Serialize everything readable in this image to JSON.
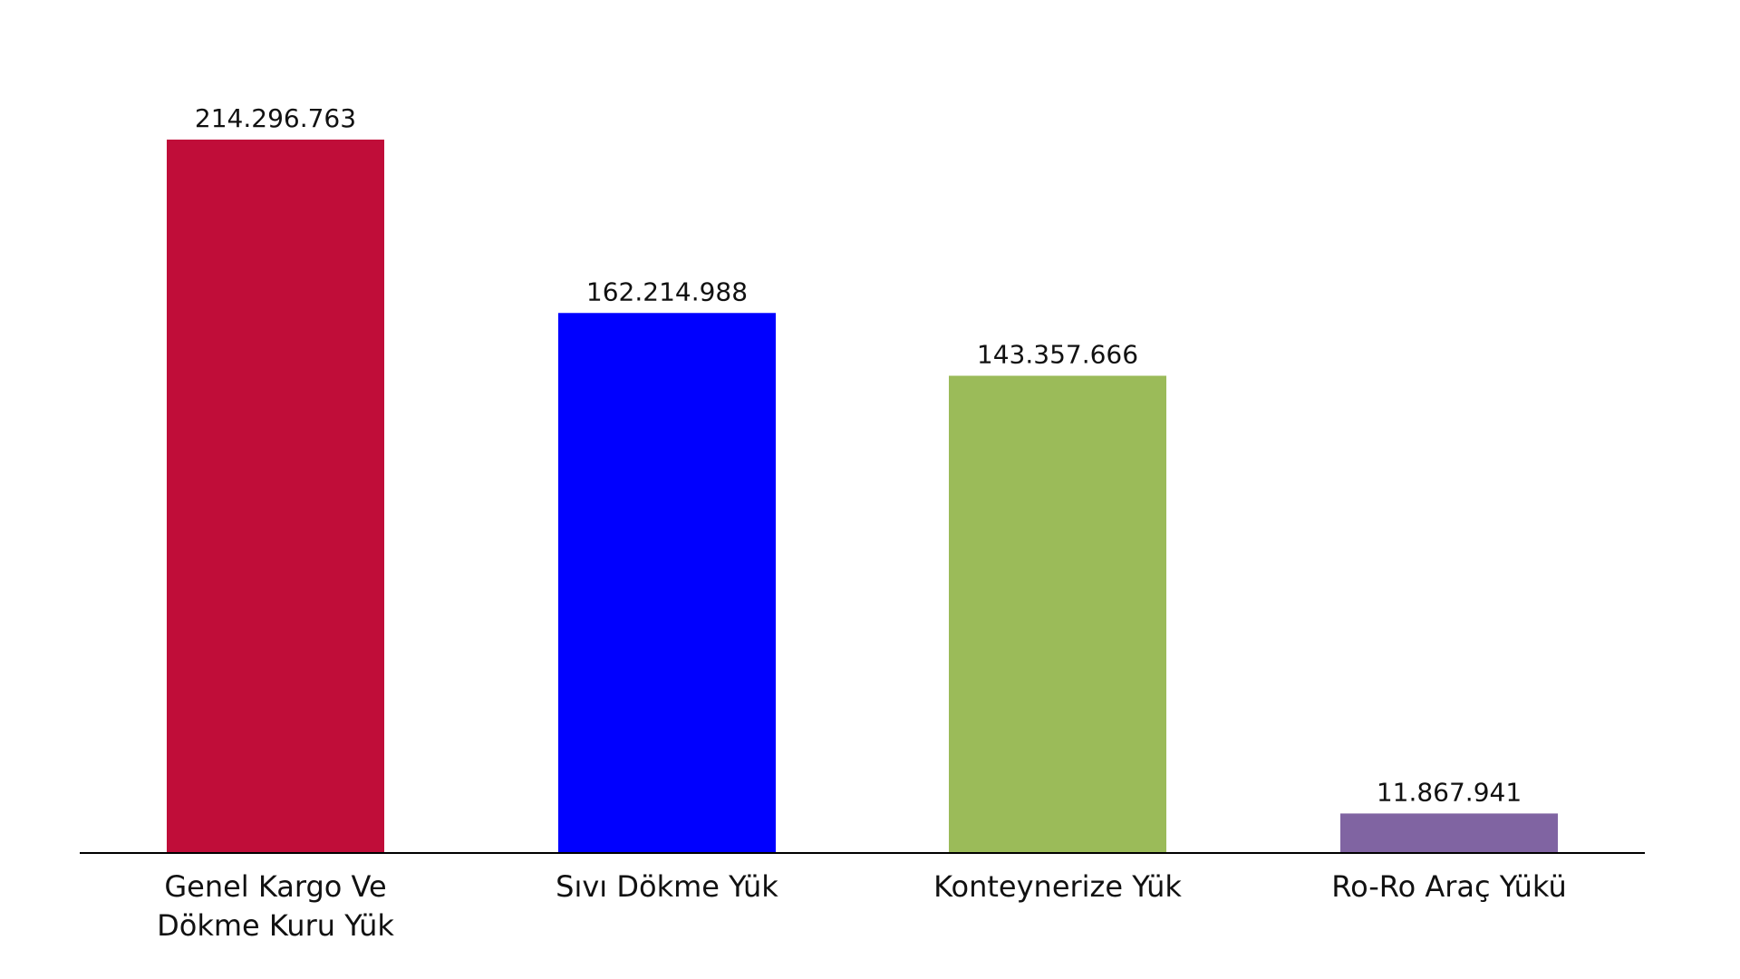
{
  "chart_data": {
    "type": "bar",
    "categories": [
      [
        "Genel Kargo Ve",
        "Dökme Kuru Yük"
      ],
      [
        "Sıvı Dökme Yük"
      ],
      [
        "Konteynerize Yük"
      ],
      [
        "Ro-Ro Araç Yükü"
      ]
    ],
    "values": [
      214296763,
      162214988,
      143357666,
      11867941
    ],
    "value_labels": [
      "214.296.763",
      "162.214.988",
      "143.357.666",
      "11.867.941"
    ],
    "colors": [
      "#C00D39",
      "#0000FF",
      "#9BBB59",
      "#8064A2"
    ],
    "title": "",
    "xlabel": "",
    "ylabel": "",
    "ylim": [
      0,
      214296763
    ],
    "grid": false,
    "legend": "none"
  }
}
